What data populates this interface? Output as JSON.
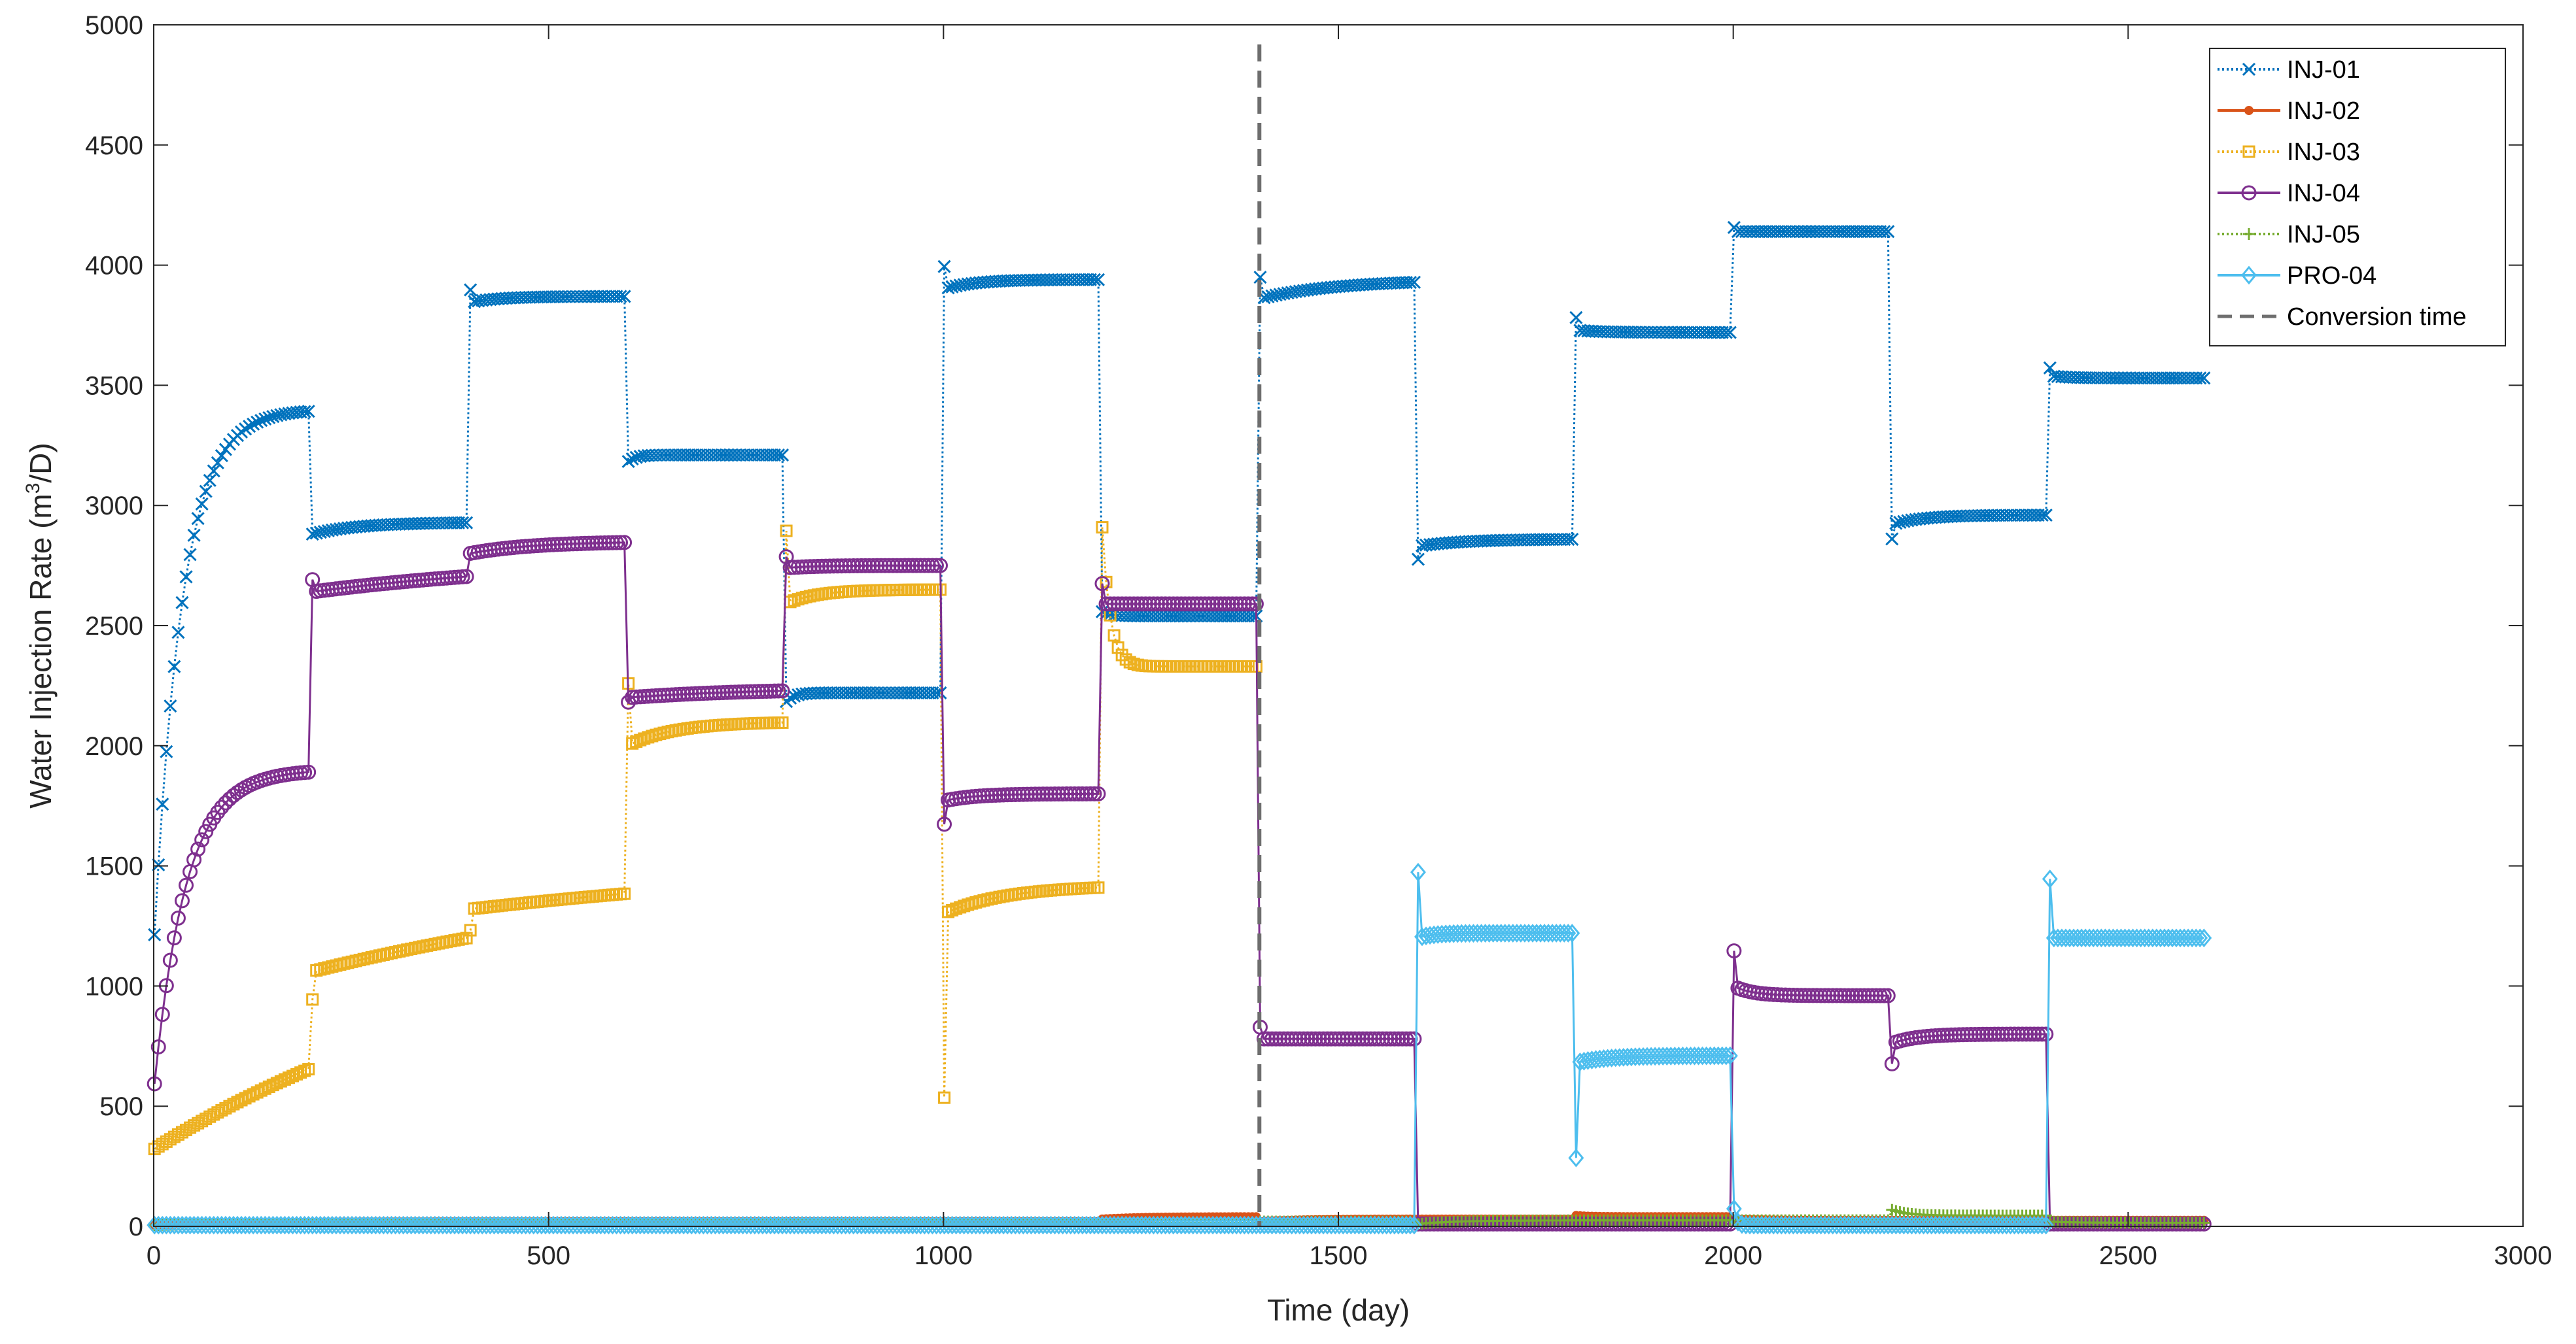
{
  "chart_data": {
    "type": "line",
    "title": "",
    "xlabel": "Time (day)",
    "ylabel_prefix": "Water Injection Rate (m",
    "ylabel_sup": "3",
    "ylabel_suffix": "/D)",
    "xlim": [
      0,
      3000
    ],
    "ylim": [
      0,
      5000
    ],
    "x_ticks": [
      0,
      500,
      1000,
      1500,
      2000,
      2500,
      3000
    ],
    "y_ticks": [
      0,
      500,
      1000,
      1500,
      2000,
      2500,
      3000,
      3500,
      4000,
      4500,
      5000
    ],
    "x_tick_labels": [
      "0",
      "500",
      "1000",
      "1500",
      "2000",
      "2500",
      "3000"
    ],
    "y_tick_labels": [
      "0",
      "500",
      "1000",
      "1500",
      "2000",
      "2500",
      "3000",
      "3500",
      "4000",
      "4500",
      "5000"
    ],
    "grid": false,
    "legend_position": "top-right",
    "conversion_time": 1400,
    "conversion_label": "Conversion time",
    "series": [
      {
        "name": "INJ-01",
        "color": "#0072BD",
        "marker": "x",
        "dash": "dotted",
        "segments": [
          {
            "start": 0,
            "end": 200,
            "v0": 1150,
            "v1": 3400,
            "tau": 35
          },
          {
            "start": 200,
            "end": 400,
            "v0": 2880,
            "v1": 2930,
            "tau": 60
          },
          {
            "start": 400,
            "end": 600,
            "v0": 3900,
            "v1": 3870,
            "tau": 10,
            "base": 3845
          },
          {
            "start": 600,
            "end": 800,
            "v0": 3180,
            "v1": 3210,
            "tau": 10
          },
          {
            "start": 800,
            "end": 1000,
            "v0": 2180,
            "v1": 2220,
            "tau": 10
          },
          {
            "start": 1000,
            "end": 1200,
            "v0": 4000,
            "v1": 3940,
            "tau": 10,
            "base": 3900
          },
          {
            "start": 1200,
            "end": 1400,
            "v0": 2560,
            "v1": 2540,
            "tau": 10
          },
          {
            "start": 1400,
            "end": 1600,
            "v0": 3950,
            "v1": 3940,
            "tau": 25,
            "base": 3860
          },
          {
            "start": 1600,
            "end": 1800,
            "v0": 2770,
            "v1": 2860,
            "tau": 15,
            "base": 2830
          },
          {
            "start": 1800,
            "end": 2000,
            "v0": 3790,
            "v1": 3720,
            "tau": 8,
            "base": 3730
          },
          {
            "start": 2000,
            "end": 2200,
            "v0": 4160,
            "v1": 4140,
            "tau": 6,
            "base": 4140
          },
          {
            "start": 2200,
            "end": 2400,
            "v0": 2850,
            "v1": 2960,
            "tau": 10,
            "base": 2920
          },
          {
            "start": 2400,
            "end": 2600,
            "v0": 3580,
            "v1": 3530,
            "tau": 6,
            "base": 3540
          }
        ]
      },
      {
        "name": "INJ-02",
        "color": "#D95319",
        "marker": "dot",
        "dash": "solid",
        "segments": [
          {
            "start": 0,
            "end": 1200,
            "v0": 5,
            "v1": 20,
            "tau": 100
          },
          {
            "start": 1200,
            "end": 1400,
            "v0": 30,
            "v1": 40,
            "tau": 50
          },
          {
            "start": 1400,
            "end": 1800,
            "v0": 20,
            "v1": 30,
            "tau": 50
          },
          {
            "start": 1800,
            "end": 2000,
            "v0": 45,
            "v1": 40,
            "tau": 20
          },
          {
            "start": 2000,
            "end": 2600,
            "v0": 30,
            "v1": 25,
            "tau": 50
          }
        ]
      },
      {
        "name": "INJ-03",
        "color": "#EDB120",
        "marker": "square",
        "dash": "dotted",
        "segments": [
          {
            "start": 0,
            "end": 200,
            "v0": 320,
            "v1": 1350,
            "tau": 500
          },
          {
            "start": 200,
            "end": 400,
            "v0": 940,
            "v1": 1560,
            "tau": 150,
            "base": 1060
          },
          {
            "start": 400,
            "end": 600,
            "v0": 1230,
            "v1": 1550,
            "tau": 150,
            "base": 1320
          },
          {
            "start": 600,
            "end": 800,
            "v0": 2270,
            "v1": 2100,
            "tau": 15,
            "base": 2000
          },
          {
            "start": 800,
            "end": 1000,
            "v0": 2920,
            "v1": 2650,
            "tau": 10,
            "base": 2590
          },
          {
            "start": 1000,
            "end": 1200,
            "v0": 490,
            "v1": 1420,
            "tau": 20,
            "base": 1300
          },
          {
            "start": 1200,
            "end": 1400,
            "v0": 2970,
            "v1": 2330,
            "tau": 10
          }
        ]
      },
      {
        "name": "INJ-04",
        "color": "#7E2F8E",
        "marker": "circle",
        "dash": "solid",
        "segments": [
          {
            "start": 0,
            "end": 200,
            "v0": 560,
            "v1": 1900,
            "tau": 40
          },
          {
            "start": 200,
            "end": 400,
            "v0": 2690,
            "v1": 2780,
            "tau": 80,
            "base": 2640
          },
          {
            "start": 400,
            "end": 600,
            "v0": 2800,
            "v1": 2850,
            "tau": 80
          },
          {
            "start": 600,
            "end": 800,
            "v0": 2180,
            "v1": 2240,
            "tau": 40,
            "base": 2200
          },
          {
            "start": 800,
            "end": 1000,
            "v0": 2790,
            "v1": 2750,
            "tau": 10,
            "base": 2740
          },
          {
            "start": 1000,
            "end": 1200,
            "v0": 1660,
            "v1": 1800,
            "tau": 10,
            "base": 1770
          },
          {
            "start": 1200,
            "end": 1400,
            "v0": 2690,
            "v1": 2590,
            "tau": 6,
            "base": 2590
          },
          {
            "start": 1400,
            "end": 1600,
            "v0": 840,
            "v1": 780,
            "tau": 5,
            "base": 780
          },
          {
            "start": 1600,
            "end": 1800,
            "v0": 10,
            "v1": 10,
            "tau": 5
          },
          {
            "start": 1800,
            "end": 2000,
            "v0": 10,
            "v1": 10,
            "tau": 5
          },
          {
            "start": 2000,
            "end": 2200,
            "v0": 1180,
            "v1": 960,
            "tau": 6,
            "base": 1000
          },
          {
            "start": 2200,
            "end": 2400,
            "v0": 660,
            "v1": 800,
            "tau": 8,
            "base": 760
          },
          {
            "start": 2400,
            "end": 2600,
            "v0": 10,
            "v1": 10,
            "tau": 5
          }
        ]
      },
      {
        "name": "INJ-05",
        "color": "#77AC30",
        "marker": "plus",
        "dash": "dotted",
        "segments": [
          {
            "start": 0,
            "end": 1400,
            "v0": 5,
            "v1": 15,
            "tau": 100
          },
          {
            "start": 1400,
            "end": 1600,
            "v0": 20,
            "v1": 20,
            "tau": 50
          },
          {
            "start": 1600,
            "end": 2200,
            "v0": 10,
            "v1": 25,
            "tau": 50
          },
          {
            "start": 2200,
            "end": 2400,
            "v0": 70,
            "v1": 45,
            "tau": 20
          },
          {
            "start": 2400,
            "end": 2600,
            "v0": 20,
            "v1": 15,
            "tau": 30
          }
        ]
      },
      {
        "name": "PRO-04",
        "color": "#4DBEEE",
        "marker": "diamond",
        "dash": "solid",
        "segments": [
          {
            "start": 0,
            "end": 1600,
            "v0": 5,
            "v1": 5,
            "tau": 50
          },
          {
            "start": 1600,
            "end": 1800,
            "v0": 1530,
            "v1": 1220,
            "tau": 5,
            "base": 1200
          },
          {
            "start": 1800,
            "end": 2000,
            "v0": 240,
            "v1": 710,
            "tau": 10,
            "base": 680
          },
          {
            "start": 2000,
            "end": 2400,
            "v0": 100,
            "v1": 5,
            "tau": 3
          },
          {
            "start": 2400,
            "end": 2600,
            "v0": 1500,
            "v1": 1200,
            "tau": 5,
            "base": 1200
          }
        ]
      }
    ]
  }
}
